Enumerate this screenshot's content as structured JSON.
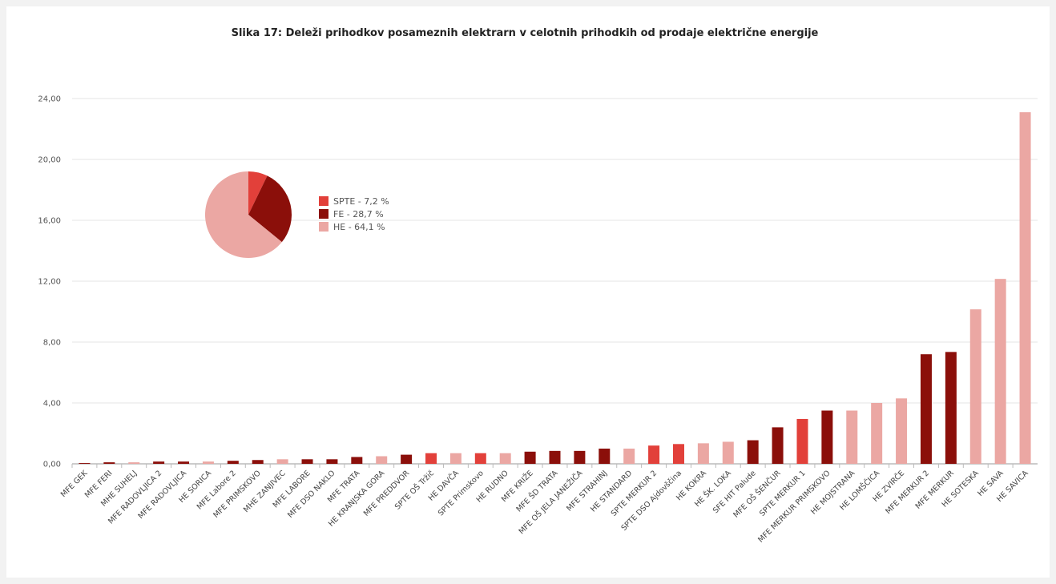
{
  "chart_data": {
    "type": "bar",
    "title": "Slika 17: Deleži prihodkov posameznih elektrarn v celotnih prihodkih od prodaje električne energije",
    "xlabel": "",
    "ylabel": "",
    "ylim": [
      0,
      24
    ],
    "yticks": [
      "0,00",
      "4,00",
      "8,00",
      "12,00",
      "16,00",
      "20,00",
      "24,00"
    ],
    "grid": true,
    "colors": {
      "SPTE": "#e2403a",
      "FE": "#8b0f0a",
      "HE": "#eba7a3"
    },
    "categories": [
      "MFE GEK",
      "MFE FERI",
      "MHE SUHELJ",
      "MFE RADOVLJICA 2",
      "MFE RADOVLJICA",
      "HE SORICA",
      "MFE Labore 2",
      "MFE PRIMSKOVO",
      "MHE ZANJIVEC",
      "MFE LABORE",
      "MFE DSO NAKLO",
      "MFE TRATA",
      "HE KRANJSKA GORA",
      "MFE PREDDVOR",
      "SPTE OŠ Tržič",
      "HE DAVČA",
      "SPTE Primskovo",
      "HE RUDNO",
      "MFE KRIŽE",
      "MFE ŠD TRATA",
      "MFE OŠ JELA JANEŽIČA",
      "MFE STRAHINJ",
      "HE STANDARD",
      "SPTE MERKUR 2",
      "SPTE DSO Ajdovščina",
      "HE KOKRA",
      "HE ŠK. LOKA",
      "SFE HIT Palude",
      "MFE OŠ ŠENČUR",
      "SPTE MERKUR 1",
      "MFE MERKUR PRIMSKOVO",
      "HE MOJSTRANA",
      "HE LOMŠČICA",
      "HE ZVIRČE",
      "MFE MERKUR 2",
      "MFE MERKUR",
      "HE SOTESKA",
      "HE SAVA",
      "HE SAVICA"
    ],
    "values": [
      0.05,
      0.1,
      0.1,
      0.15,
      0.15,
      0.15,
      0.2,
      0.25,
      0.3,
      0.3,
      0.3,
      0.45,
      0.5,
      0.6,
      0.7,
      0.7,
      0.7,
      0.7,
      0.8,
      0.85,
      0.85,
      1.0,
      1.0,
      1.2,
      1.3,
      1.35,
      1.45,
      1.55,
      2.4,
      2.95,
      3.5,
      3.5,
      4.0,
      4.3,
      7.2,
      7.35,
      10.15,
      12.15,
      23.1
    ],
    "groups": [
      "FE",
      "FE",
      "HE",
      "FE",
      "FE",
      "HE",
      "FE",
      "FE",
      "HE",
      "FE",
      "FE",
      "FE",
      "HE",
      "FE",
      "SPTE",
      "HE",
      "SPTE",
      "HE",
      "FE",
      "FE",
      "FE",
      "FE",
      "HE",
      "SPTE",
      "SPTE",
      "HE",
      "HE",
      "FE",
      "FE",
      "SPTE",
      "FE",
      "HE",
      "HE",
      "HE",
      "FE",
      "FE",
      "HE",
      "HE",
      "HE"
    ],
    "pie": {
      "type": "pie",
      "slices": [
        {
          "label": "SPTE - 7,2 %",
          "value": 7.2,
          "group": "SPTE"
        },
        {
          "label": "FE - 28,7 %",
          "value": 28.7,
          "group": "FE"
        },
        {
          "label": "HE - 64,1 %",
          "value": 64.1,
          "group": "HE"
        }
      ],
      "legend_position": "right"
    }
  }
}
